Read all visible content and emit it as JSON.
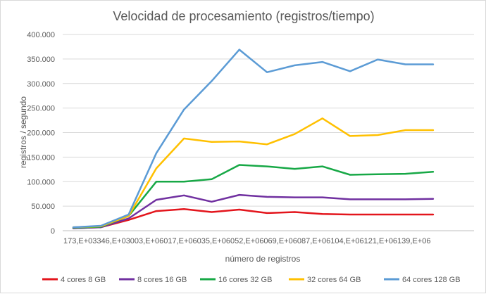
{
  "chart_data": {
    "type": "line",
    "title": "Velocidad de procesamiento (registros/tiempo)",
    "xlabel": "número de registros",
    "ylabel": "registros / segundo",
    "x_tick_text": "173,E+03346,E+03003,E+06017,E+06035,E+06052,E+06069,E+06087,E+06104,E+06121,E+06139,E+06",
    "yticks": [
      "0",
      "50.000",
      "100.000",
      "150.000",
      "200.000",
      "250.000",
      "300.000",
      "350.000",
      "400.000"
    ],
    "ylim": [
      0,
      400000
    ],
    "grid": true,
    "legend_position": "bottom",
    "x": [
      1,
      2,
      3,
      4,
      5,
      6,
      7,
      8,
      9,
      10,
      11,
      12,
      13,
      14
    ],
    "series": [
      {
        "name": "4 cores 8 GB",
        "color": "#e3151c",
        "values": [
          5000,
          7000,
          22000,
          40000,
          44000,
          38000,
          43000,
          36000,
          38000,
          34000,
          33000,
          33000,
          33000,
          33000
        ]
      },
      {
        "name": "8 cores 16 GB",
        "color": "#7030a0",
        "values": [
          5000,
          7000,
          25000,
          63000,
          72000,
          59000,
          73000,
          69000,
          68000,
          68000,
          64000,
          64000,
          64000,
          65000
        ]
      },
      {
        "name": "16 cores 32 GB",
        "color": "#17a846",
        "values": [
          6000,
          8000,
          30000,
          100000,
          100000,
          105000,
          134000,
          131000,
          126000,
          131000,
          114000,
          115000,
          116000,
          120000
        ]
      },
      {
        "name": "32 cores 64 GB",
        "color": "#ffc000",
        "values": [
          7000,
          9000,
          30000,
          127000,
          188000,
          181000,
          182000,
          176000,
          197000,
          229000,
          193000,
          195000,
          205000,
          205000
        ]
      },
      {
        "name": "64 cores 128 GB",
        "color": "#5b9bd5",
        "values": [
          7000,
          10000,
          33000,
          158000,
          247000,
          305000,
          369000,
          323000,
          337000,
          344000,
          325000,
          349000,
          339000,
          339000
        ]
      }
    ]
  }
}
